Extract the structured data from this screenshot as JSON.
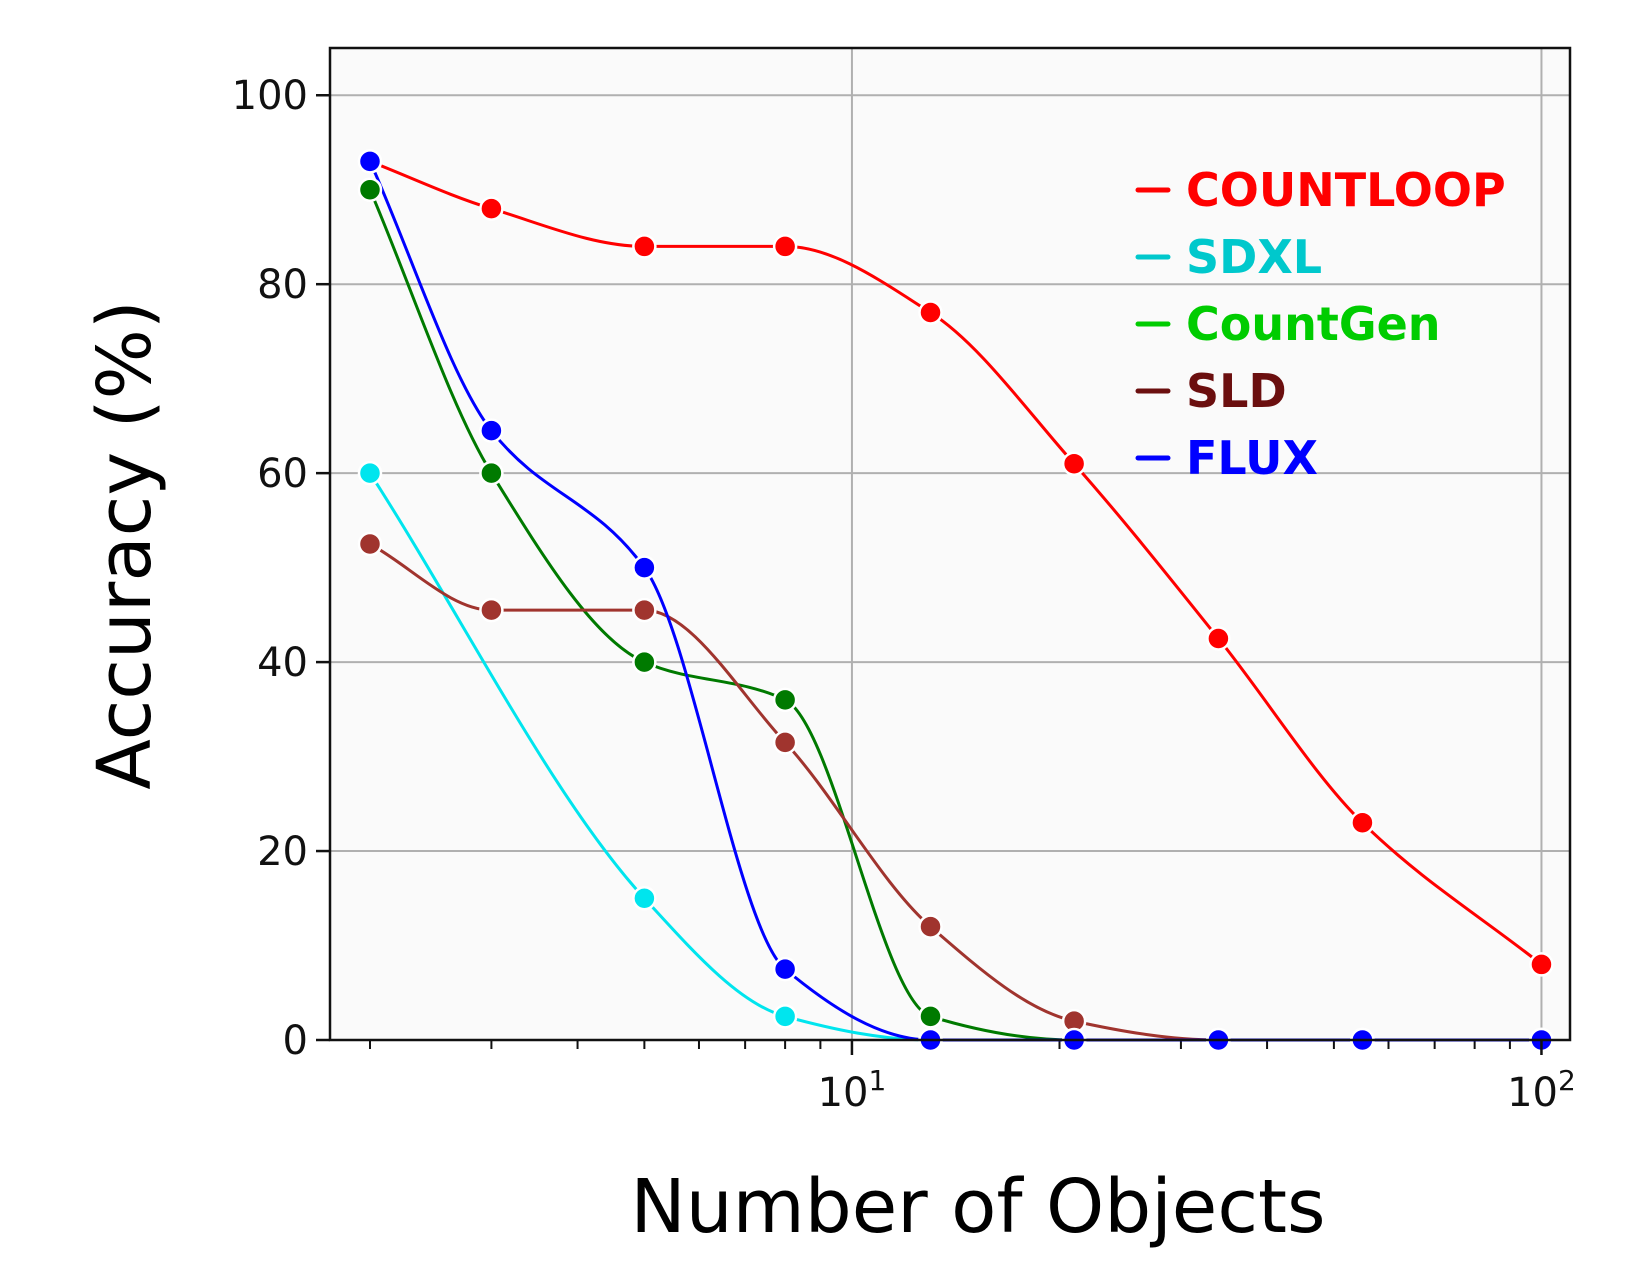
{
  "chart_data": {
    "type": "line",
    "xlabel": "Number of Objects",
    "ylabel": "Accuracy (%)",
    "x_scale": "log",
    "xlim": [
      1.75,
      110
    ],
    "ylim": [
      0,
      105
    ],
    "x_ticks": [
      {
        "value": 10,
        "base": "10",
        "exp": "1"
      },
      {
        "value": 100,
        "base": "10",
        "exp": "2"
      }
    ],
    "y_ticks": [
      0,
      20,
      40,
      60,
      80,
      100
    ],
    "grid": true,
    "legend_position": "top-right",
    "series": [
      {
        "name": "COUNTLOOP",
        "color": "#ff0000",
        "x": [
          2,
          3,
          5,
          8,
          13,
          21,
          34,
          55,
          100
        ],
        "y": [
          93,
          88,
          84,
          84,
          77,
          61,
          42.5,
          23,
          8
        ]
      },
      {
        "name": "SDXL",
        "color": "#00e5ee",
        "legend_color": "#00c8cc",
        "x": [
          2,
          5,
          8,
          13,
          21,
          34,
          55,
          100
        ],
        "y": [
          60,
          15,
          2.5,
          0,
          0,
          0,
          0,
          0
        ]
      },
      {
        "name": "CountGen",
        "color": "#007a00",
        "legend_color": "#00cc00",
        "x": [
          2,
          3,
          5,
          8,
          13,
          21,
          34,
          55,
          100
        ],
        "y": [
          90,
          60,
          40,
          36,
          2.5,
          0,
          0,
          0,
          0
        ]
      },
      {
        "name": "SLD",
        "color": "#a0342e",
        "legend_color": "#6b0f0f",
        "x": [
          2,
          3,
          5,
          8,
          13,
          21,
          34,
          55,
          100
        ],
        "y": [
          52.5,
          45.5,
          45.5,
          31.5,
          12,
          2,
          0,
          0,
          0
        ]
      },
      {
        "name": "FLUX",
        "color": "#0000ff",
        "x": [
          2,
          3,
          5,
          8,
          13,
          21,
          34,
          55,
          100
        ],
        "y": [
          93,
          64.5,
          50,
          7.5,
          0,
          0,
          0,
          0,
          0
        ]
      }
    ]
  }
}
